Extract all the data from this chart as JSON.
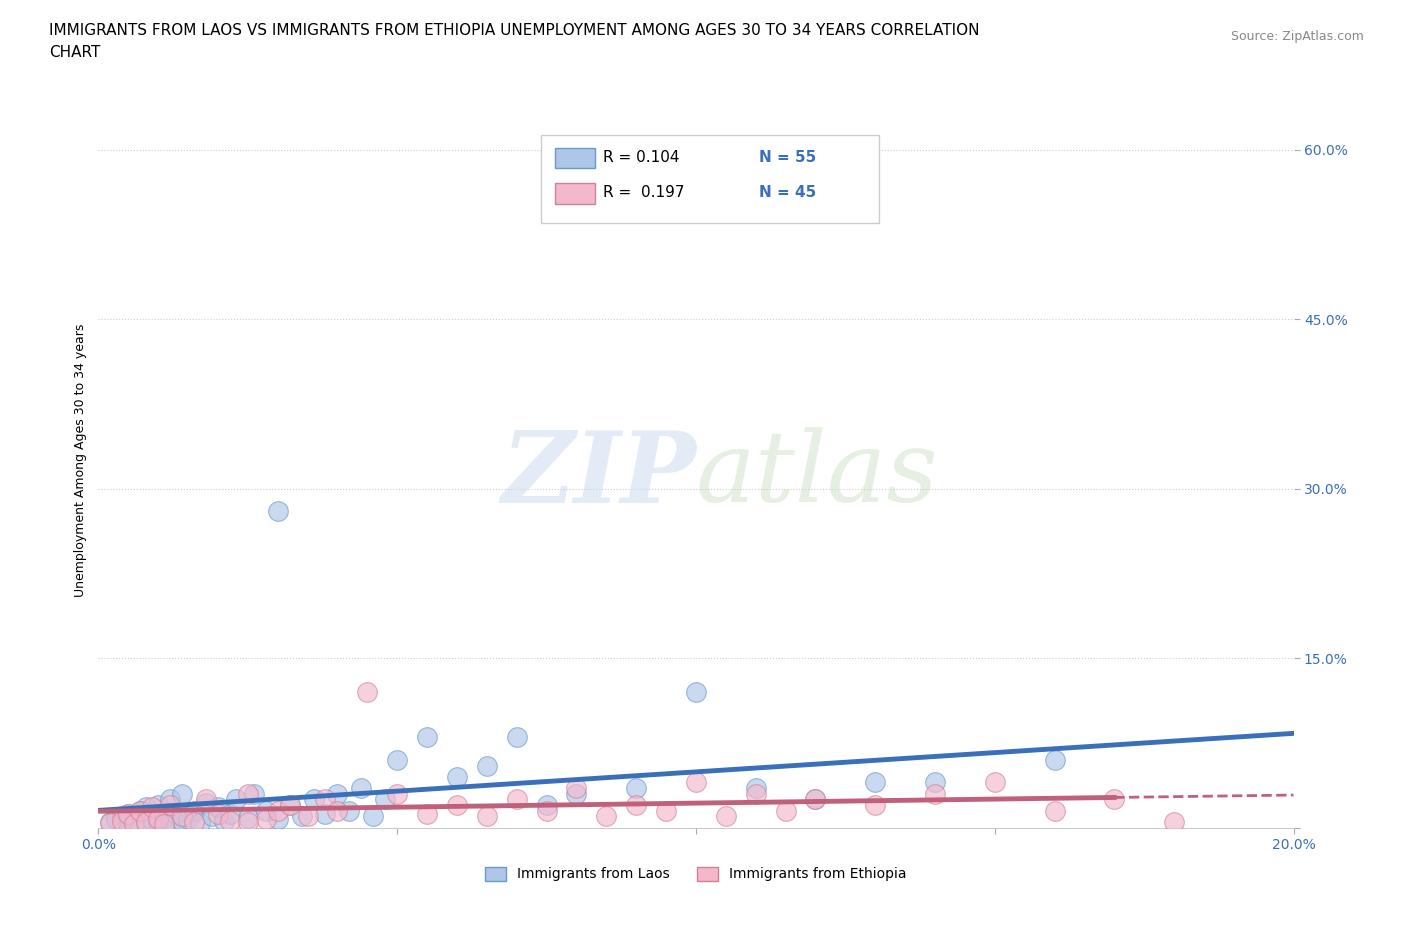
{
  "title_line1": "IMMIGRANTS FROM LAOS VS IMMIGRANTS FROM ETHIOPIA UNEMPLOYMENT AMONG AGES 30 TO 34 YEARS CORRELATION",
  "title_line2": "CHART",
  "source": "Source: ZipAtlas.com",
  "ylabel": "Unemployment Among Ages 30 to 34 years",
  "xlim": [
    0.0,
    0.2
  ],
  "ylim": [
    0.0,
    0.65
  ],
  "xticks": [
    0.0,
    0.05,
    0.1,
    0.15,
    0.2
  ],
  "yticks": [
    0.0,
    0.15,
    0.3,
    0.45,
    0.6
  ],
  "grid_color": "#cccccc",
  "background_color": "#ffffff",
  "legend_laos_label": "Immigrants from Laos",
  "legend_ethiopia_label": "Immigrants from Ethiopia",
  "laos_R": 0.104,
  "laos_N": 55,
  "ethiopia_R": 0.197,
  "ethiopia_N": 45,
  "laos_color": "#aec6e8",
  "laos_line_color": "#3a6fba",
  "laos_edge_color": "#6699cc",
  "ethiopia_color": "#f4b8cc",
  "ethiopia_line_color": "#c0607a",
  "ethiopia_edge_color": "#d08090",
  "laos_scatter_x": [
    0.002,
    0.003,
    0.004,
    0.005,
    0.005,
    0.006,
    0.007,
    0.008,
    0.008,
    0.009,
    0.01,
    0.01,
    0.011,
    0.012,
    0.012,
    0.013,
    0.014,
    0.014,
    0.015,
    0.016,
    0.017,
    0.018,
    0.019,
    0.02,
    0.021,
    0.022,
    0.023,
    0.025,
    0.026,
    0.028,
    0.03,
    0.032,
    0.034,
    0.036,
    0.038,
    0.04,
    0.042,
    0.044,
    0.046,
    0.048,
    0.05,
    0.055,
    0.06,
    0.065,
    0.07,
    0.075,
    0.08,
    0.09,
    0.1,
    0.11,
    0.12,
    0.13,
    0.14,
    0.16,
    0.03
  ],
  "laos_scatter_y": [
    0.005,
    0.008,
    0.01,
    0.003,
    0.012,
    0.006,
    0.015,
    0.004,
    0.018,
    0.007,
    0.005,
    0.02,
    0.009,
    0.003,
    0.025,
    0.012,
    0.006,
    0.03,
    0.008,
    0.015,
    0.004,
    0.022,
    0.01,
    0.018,
    0.006,
    0.012,
    0.025,
    0.009,
    0.03,
    0.015,
    0.008,
    0.02,
    0.01,
    0.025,
    0.012,
    0.03,
    0.015,
    0.035,
    0.01,
    0.025,
    0.06,
    0.08,
    0.045,
    0.055,
    0.08,
    0.02,
    0.03,
    0.035,
    0.12,
    0.035,
    0.025,
    0.04,
    0.04,
    0.06,
    0.28
  ],
  "ethiopia_scatter_x": [
    0.002,
    0.004,
    0.005,
    0.006,
    0.007,
    0.008,
    0.009,
    0.01,
    0.011,
    0.012,
    0.014,
    0.016,
    0.018,
    0.02,
    0.022,
    0.025,
    0.028,
    0.03,
    0.032,
    0.035,
    0.038,
    0.04,
    0.045,
    0.05,
    0.055,
    0.06,
    0.065,
    0.07,
    0.075,
    0.08,
    0.085,
    0.09,
    0.095,
    0.1,
    0.105,
    0.11,
    0.115,
    0.12,
    0.13,
    0.14,
    0.15,
    0.16,
    0.17,
    0.18,
    0.025
  ],
  "ethiopia_scatter_y": [
    0.004,
    0.006,
    0.012,
    0.003,
    0.015,
    0.005,
    0.018,
    0.008,
    0.003,
    0.02,
    0.01,
    0.005,
    0.025,
    0.012,
    0.006,
    0.03,
    0.008,
    0.015,
    0.02,
    0.01,
    0.025,
    0.015,
    0.12,
    0.03,
    0.012,
    0.02,
    0.01,
    0.025,
    0.015,
    0.035,
    0.01,
    0.02,
    0.015,
    0.04,
    0.01,
    0.03,
    0.015,
    0.025,
    0.02,
    0.03,
    0.04,
    0.015,
    0.025,
    0.005,
    0.005
  ],
  "title_fontsize": 11,
  "source_fontsize": 9,
  "axis_label_fontsize": 9,
  "tick_fontsize": 10
}
